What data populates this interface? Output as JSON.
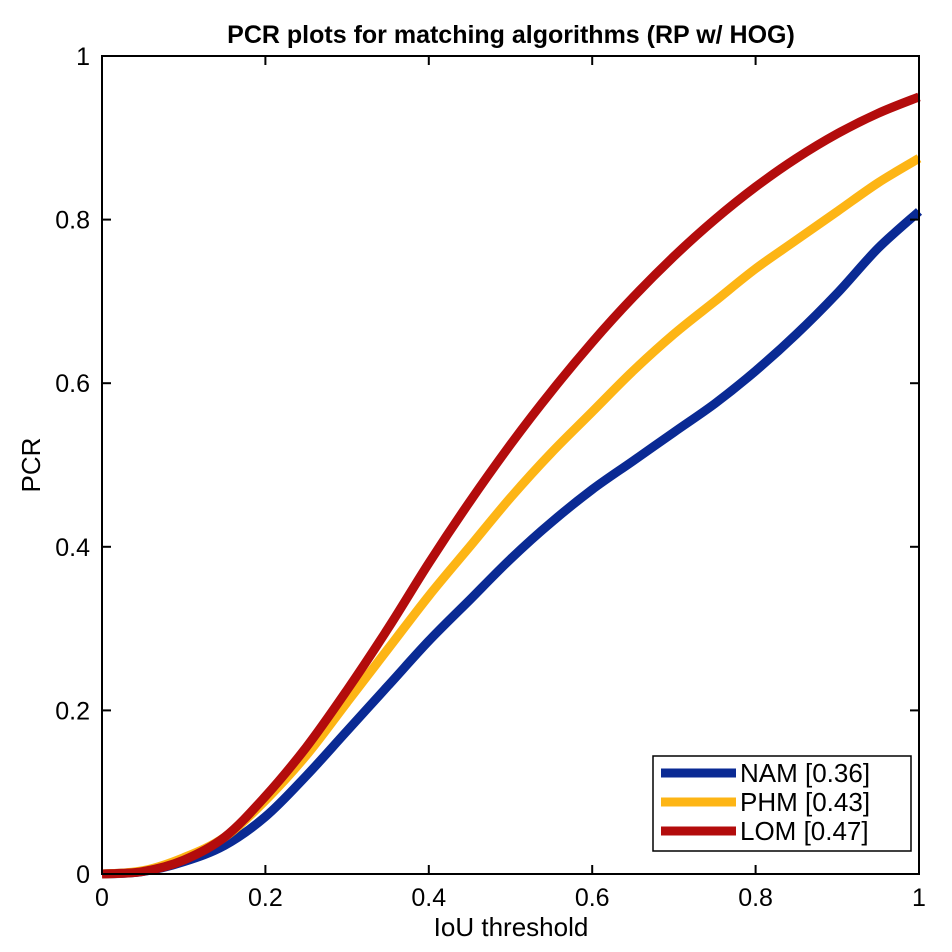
{
  "chart_data": {
    "type": "line",
    "title": "PCR plots for matching algorithms (RP w/ HOG)",
    "xlabel": "IoU threshold",
    "ylabel": "PCR",
    "xlim": [
      0,
      1
    ],
    "ylim": [
      0,
      1
    ],
    "xticks": [
      0,
      0.2,
      0.4,
      0.6,
      0.8,
      1
    ],
    "yticks": [
      0,
      0.2,
      0.4,
      0.6,
      0.8,
      1
    ],
    "xtick_labels": [
      "0",
      "0.2",
      "0.4",
      "0.6",
      "0.8",
      "1"
    ],
    "ytick_labels": [
      "0",
      "0.2",
      "0.4",
      "0.6",
      "0.8",
      "1"
    ],
    "grid": false,
    "legend_position": "bottom-right",
    "x": [
      0,
      0.05,
      0.1,
      0.15,
      0.2,
      0.25,
      0.3,
      0.35,
      0.4,
      0.45,
      0.5,
      0.55,
      0.6,
      0.65,
      0.7,
      0.75,
      0.8,
      0.85,
      0.9,
      0.95,
      1.0
    ],
    "series": [
      {
        "name": "NAM [0.36]",
        "color": "#0a2a94",
        "values": [
          0,
          0.003,
          0.015,
          0.035,
          0.07,
          0.12,
          0.175,
          0.23,
          0.285,
          0.335,
          0.385,
          0.43,
          0.47,
          0.505,
          0.54,
          0.575,
          0.615,
          0.66,
          0.71,
          0.765,
          0.81
        ]
      },
      {
        "name": "PHM [0.43]",
        "color": "#fdb515",
        "values": [
          0,
          0.004,
          0.02,
          0.045,
          0.09,
          0.145,
          0.21,
          0.275,
          0.34,
          0.4,
          0.46,
          0.515,
          0.565,
          0.615,
          0.66,
          0.7,
          0.74,
          0.775,
          0.81,
          0.845,
          0.875
        ]
      },
      {
        "name": "LOM [0.47]",
        "color": "#b30c0c",
        "values": [
          0,
          0.003,
          0.017,
          0.045,
          0.095,
          0.155,
          0.225,
          0.3,
          0.38,
          0.455,
          0.525,
          0.59,
          0.65,
          0.705,
          0.755,
          0.8,
          0.84,
          0.875,
          0.905,
          0.93,
          0.95
        ]
      }
    ]
  }
}
